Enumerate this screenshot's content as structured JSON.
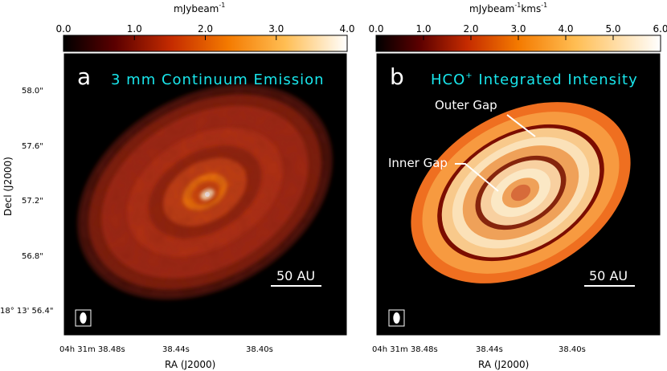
{
  "panels": [
    {
      "id": "a",
      "label": "a",
      "title": "3 mm Continuum Emission",
      "colorbar_unit": "mJybeam$^{-1}$",
      "colorbar_unit_text": "mJybeam",
      "colorbar_unit_sup": "-1",
      "colorbar_ticks": [
        "0.0",
        "1.0",
        "2.0",
        "3.0",
        "4.0"
      ],
      "scale_bar_label": "50 AU"
    },
    {
      "id": "b",
      "label": "b",
      "title_main": "HCO",
      "title_sup": "+",
      "title_rest": " Integrated Intensity",
      "colorbar_unit_text": "mJybeam",
      "colorbar_unit_sup1": "-1",
      "colorbar_unit_mid": "kms",
      "colorbar_unit_sup2": "-1",
      "colorbar_ticks": [
        "0.0",
        "1.0",
        "2.0",
        "3.0",
        "4.0",
        "5.0",
        "6.0"
      ],
      "scale_bar_label": "50 AU",
      "annotations": [
        "Outer Gap",
        "Inner Gap"
      ]
    }
  ],
  "y_axis": {
    "label": "Decl (J2000)",
    "ticks": [
      "58.0\"",
      "57.6\"",
      "57.2\"",
      "56.8\""
    ],
    "origin_tick": "18° 13' 56.4\""
  },
  "x_axis": {
    "label": "RA (J2000)",
    "origin_tick": "04h 31m 38.48s",
    "ticks": [
      "38.44s",
      "38.40s"
    ]
  },
  "colors": {
    "background": "#000000",
    "title": "#19e6ec",
    "label": "#ffffff"
  }
}
